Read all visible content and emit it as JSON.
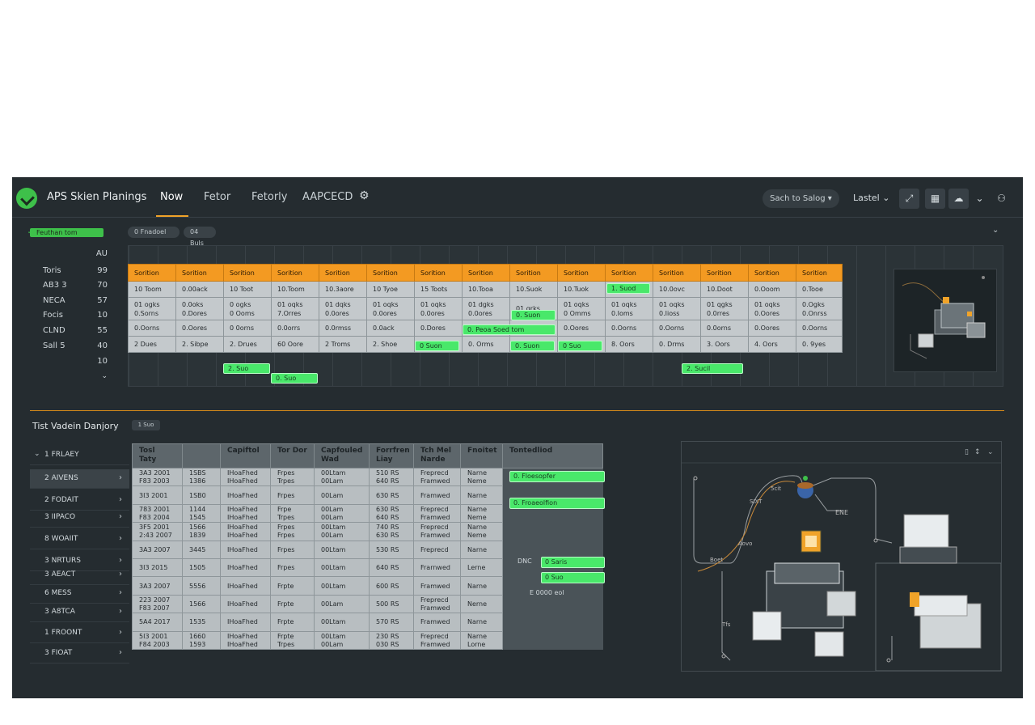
{
  "app": {
    "title": "APS Skien Planings",
    "nav": [
      "Now",
      "Fetor",
      "Fetorly",
      "AAPCECD"
    ],
    "search_label": "Sach to Salog",
    "label_dropdown": "Lastel"
  },
  "gantt": {
    "filter_tag": "Feuthan tom",
    "chips": [
      "0 Fnadoel",
      "04 Buls"
    ],
    "row_all": "AU",
    "rows": [
      {
        "label": "Toris",
        "value": "99"
      },
      {
        "label": "AB3 3",
        "value": "70"
      },
      {
        "label": "NECA",
        "value": "57"
      },
      {
        "label": "Focis",
        "value": "10"
      },
      {
        "label": "CLND",
        "value": "55"
      },
      {
        "label": "Sall 5",
        "value": "40"
      },
      {
        "label": "",
        "value": "10"
      }
    ],
    "columns": [
      "Sorition",
      "Sorition",
      "Sorition",
      "Sorition",
      "Sorition",
      "Sorition",
      "Sorition",
      "Sorition",
      "Sorition",
      "Sorition",
      "Sorition",
      "Sorition",
      "Sorition",
      "Sorition",
      "Sorition"
    ],
    "table_rows": [
      [
        "10 Toom",
        "0.00ack",
        "10 Toot",
        "10.Toom",
        "10.3aore",
        "10 Tyoe",
        "15 Toots",
        "10.Tooa",
        "10.Suok",
        "10.Tuok",
        "",
        "10.0ovc",
        "10.Doot",
        "0.Ooom",
        "0.Tooe"
      ],
      [
        "01 ogks\n0.Sorns",
        "0.0oks\n0.Dores",
        "0 ogks\n0 Ooms",
        "01 oqks\n7.Orres",
        "01 dqks\n0.0ores",
        "01 oqks\n0.0ores",
        "01 oqks\n0.0ores",
        "01 dgks\n0.0ores",
        "01 qrks\n",
        "01 oqks\n0 Omms",
        "01 oqks\n0.Ioms",
        "01 oqks\n0.Iioss",
        "01 qgks\n0.0rres",
        "01 oqks\n0.Oores",
        "0.Ogks\n0.Onrss"
      ],
      [
        "0.Oorns",
        "0.Oores",
        "0 0orns",
        "0.0orrs",
        "0.0rmss",
        "0.0ack",
        "0.Dores",
        "",
        "",
        "0.Oores",
        "0.Oorns",
        "0.Oorns",
        "0.0orns",
        "0.Oores",
        "0.Oorns"
      ],
      [
        "2 Dues",
        "2. Sibpe",
        "2. Drues",
        "60 Oore",
        "2 Troms",
        "2. Shoe",
        "",
        "0. Orms",
        "",
        "",
        "8. Oors",
        "0. Drms",
        "3. Oors",
        "4. Oors",
        "0. 9yes"
      ]
    ],
    "bars": {
      "r1c10": "1. Suod",
      "r2c8": "0. Suon",
      "r3c7": "0. Peoa Soed tom",
      "r4c6": "0 Suon",
      "r4c8": "0. Suon",
      "r4c9": "0 Suo",
      "extra1": "2. Suo",
      "extra2": "0. Suo",
      "extra3": "2. Sucil"
    }
  },
  "lower": {
    "title": "Tist Vadein Danjory",
    "chip": "1 Suo",
    "sidebar": [
      "1 FRLAEY",
      "2 AIVENS",
      "2 FODAIT",
      "3 IIPACO",
      "8 WOAIIT",
      "3 NRTURS",
      "3 AEACT",
      "6 MESS",
      "3 A8TCA",
      "1 FROONT",
      "3 FIOAT"
    ],
    "headers": [
      "Tosl\nTaty",
      "",
      "Capiftol",
      "Tor Dor",
      "Capfouled\nWad",
      "Forrfren\nLiay",
      "Tch Mel\nNarde",
      "Fnoitet",
      "Tontedliod"
    ],
    "rows": [
      [
        "3A3 2001\nF83 2003",
        "1SBS\n1386",
        "IHoaFhed\nIHoaFhed",
        "Frpes\nTrpes",
        "00Ltam\n00Lam",
        "510 RS\n640 RS",
        "Freprecd\nFramwed",
        "Narne\nNeme"
      ],
      [
        "3I3 2001",
        "1SB0",
        "IHoaFhed",
        "Frpes",
        "00Lam",
        "630 RS",
        "Framwed",
        "Narne"
      ],
      [
        "783 2001\nF83 2004",
        "1144\n1545",
        "IHoaFhed\nIHoaFhed",
        "Frpe\nTrpes",
        "00Lam\n00Lam",
        "630 RS\n640 RS",
        "Freprecd\nFramwed",
        "Narne\nNeme"
      ],
      [
        "3F5 2001\n2:43 2007",
        "1566\n1839",
        "IHoaFhed\nIHoaFhed",
        "Frpes\nFrpes",
        "00Ltam\n00Lam",
        "740 RS\n630 RS",
        "Freprecd\nFramwed",
        "Narne\nNeme"
      ],
      [
        "3A3 2007",
        "3445",
        "IHoaFhed",
        "Frpes",
        "00Ltam",
        "530 RS",
        "Freprecd",
        "Narne"
      ],
      [
        "3I3 2015",
        "1505",
        "IHoaFhed",
        "Frpes",
        "00Ltam",
        "640 RS",
        "Frarnwed",
        "Lerne"
      ],
      [
        "3A3 2007",
        "5556",
        "IHoaFhed",
        "Frpte",
        "00Ltam",
        "600 RS",
        "Framwed",
        "Narne"
      ],
      [
        "223 2007\nF83 2007",
        "1566",
        "IHoaFhed",
        "Frpte",
        "00Lam",
        "500 RS",
        "Freprecd\nFramwed",
        "Nerne"
      ],
      [
        "5A4 2017",
        "1535",
        "IHoaFhed",
        "Frpte",
        "00Ltam",
        "570 RS",
        "Framwed",
        "Narne"
      ],
      [
        "5I3 2001\nF84 2003",
        "1660\n1593",
        "IHoaFhed\nIHoaFhed",
        "Frpte\nTrpes",
        "00Ltam\n00Lam",
        "230 RS\n030 RS",
        "Freprecd\nFramwed",
        "Narne\nLorne"
      ]
    ],
    "right_bars": [
      "0. Floesopfer",
      "0. Froaeolfion",
      "0 Saris",
      "0 Suo"
    ],
    "right_label": "DNC",
    "right_note": "E  0000 eol"
  },
  "diagram": {
    "labels": [
      "5cit",
      "SIXT",
      "ENE",
      "Boet",
      "Aovo",
      "Tfs"
    ]
  },
  "colors": {
    "accent": "#f39a22",
    "bar_green": "#49e86a",
    "brand_green": "#3ec04a",
    "panel_dark": "#252c30"
  }
}
